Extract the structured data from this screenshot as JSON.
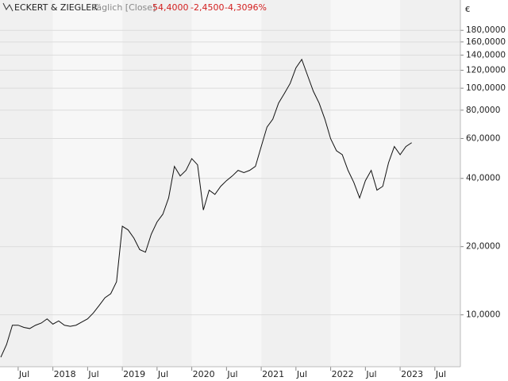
{
  "chart_data": {
    "type": "line",
    "title": "ECKERT & ZIEGLER",
    "subtitle": "Täglich [Close]",
    "last": "54,4000",
    "change": "-2,4500",
    "change_pct": "-4,3096%",
    "currency": "€",
    "log_scale": true,
    "grid": true,
    "color": "#111111",
    "x": [
      "2017-04",
      "2017-05",
      "2017-06",
      "2017-07",
      "2017-08",
      "2017-09",
      "2017-10",
      "2017-11",
      "2017-12",
      "2018-01",
      "2018-02",
      "2018-03",
      "2018-04",
      "2018-05",
      "2018-06",
      "2018-07",
      "2018-08",
      "2018-09",
      "2018-10",
      "2018-11",
      "2018-12",
      "2019-01",
      "2019-02",
      "2019-03",
      "2019-04",
      "2019-05",
      "2019-06",
      "2019-07",
      "2019-08",
      "2019-09",
      "2019-10",
      "2019-11",
      "2019-12",
      "2020-01",
      "2020-02",
      "2020-03",
      "2020-04",
      "2020-05",
      "2020-06",
      "2020-07",
      "2020-08",
      "2020-09",
      "2020-10",
      "2020-11",
      "2020-12",
      "2021-01",
      "2021-02",
      "2021-03",
      "2021-04",
      "2021-05",
      "2021-06",
      "2021-07",
      "2021-08",
      "2021-09",
      "2021-10",
      "2021-11",
      "2021-12",
      "2022-01",
      "2022-02",
      "2022-03",
      "2022-04",
      "2022-05",
      "2022-06",
      "2022-07",
      "2022-08",
      "2022-09",
      "2022-10",
      "2022-11",
      "2022-12",
      "2023-01",
      "2023-02",
      "2023-03"
    ],
    "values": [
      6.5,
      7.4,
      9.0,
      9.0,
      8.8,
      8.7,
      9.0,
      9.2,
      9.6,
      9.1,
      9.4,
      9.0,
      8.9,
      9.0,
      9.3,
      9.6,
      10.2,
      11.0,
      11.9,
      12.4,
      14.0,
      24.6,
      23.7,
      21.8,
      19.4,
      18.9,
      22.7,
      25.7,
      27.8,
      32.8,
      45.2,
      41.0,
      43.4,
      48.9,
      45.9,
      29.0,
      35.5,
      34.0,
      36.9,
      39.1,
      41.0,
      43.4,
      42.4,
      43.4,
      45.2,
      55.3,
      67.4,
      73.0,
      86.0,
      94.8,
      105,
      123,
      134,
      114,
      97,
      86,
      73,
      59.8,
      53.0,
      50.9,
      43.4,
      38.4,
      32.8,
      39.1,
      43.4,
      35.5,
      36.9,
      46.9,
      55.3,
      50.9,
      55.3,
      57.5
    ],
    "xlim": [
      "2017-04",
      "2023-11"
    ],
    "xticks": [
      {
        "value": "2017-07",
        "label": "Jul"
      },
      {
        "value": "2018-01",
        "label": "2018"
      },
      {
        "value": "2018-07",
        "label": "Jul"
      },
      {
        "value": "2019-01",
        "label": "2019"
      },
      {
        "value": "2019-07",
        "label": "Jul"
      },
      {
        "value": "2020-01",
        "label": "2020"
      },
      {
        "value": "2020-07",
        "label": "Jul"
      },
      {
        "value": "2021-01",
        "label": "2021"
      },
      {
        "value": "2021-07",
        "label": "Jul"
      },
      {
        "value": "2022-01",
        "label": "2022"
      },
      {
        "value": "2022-07",
        "label": "Jul"
      },
      {
        "value": "2023-01",
        "label": "2023"
      },
      {
        "value": "2023-07",
        "label": "Jul"
      }
    ],
    "ylim": [
      6,
      245
    ],
    "yticks": [
      {
        "value": 10,
        "label": "10,0000"
      },
      {
        "value": 20,
        "label": "20,0000"
      },
      {
        "value": 40,
        "label": "40,0000"
      },
      {
        "value": 60,
        "label": "60,0000"
      },
      {
        "value": 80,
        "label": "80,0000"
      },
      {
        "value": 100,
        "label": "100,0000"
      },
      {
        "value": 120,
        "label": "120,0000"
      },
      {
        "value": 140,
        "label": "140,0000"
      },
      {
        "value": 160,
        "label": "160,0000"
      },
      {
        "value": 180,
        "label": "180,0000"
      }
    ]
  }
}
